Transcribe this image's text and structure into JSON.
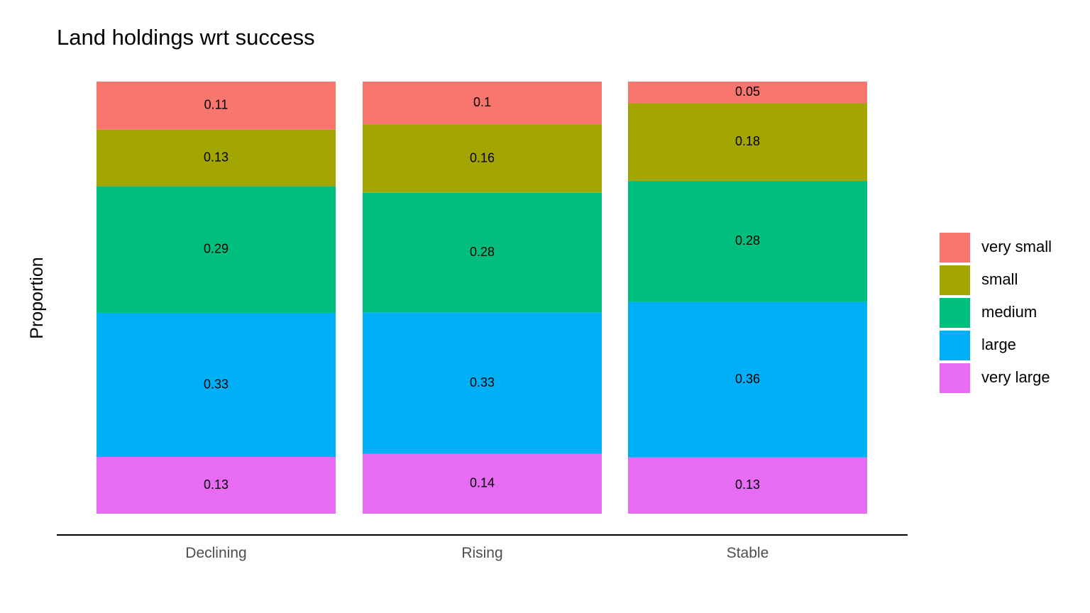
{
  "chart_data": {
    "type": "bar",
    "stacked": true,
    "title": "Land holdings wrt success",
    "xlabel": "",
    "ylabel": "Proportion",
    "categories": [
      "Declining",
      "Rising",
      "Stable"
    ],
    "series": [
      {
        "name": "very small",
        "color": "#F8766D",
        "values": [
          0.11,
          0.1,
          0.05
        ]
      },
      {
        "name": "small",
        "color": "#A3A500",
        "values": [
          0.13,
          0.16,
          0.18
        ]
      },
      {
        "name": "medium",
        "color": "#00BF7D",
        "values": [
          0.29,
          0.28,
          0.28
        ]
      },
      {
        "name": "large",
        "color": "#00B0F6",
        "values": [
          0.33,
          0.33,
          0.36
        ]
      },
      {
        "name": "very large",
        "color": "#E76BF3",
        "values": [
          0.13,
          0.14,
          0.13
        ]
      }
    ],
    "ylim": [
      0,
      1
    ],
    "grid": false,
    "legend_position": "right"
  }
}
